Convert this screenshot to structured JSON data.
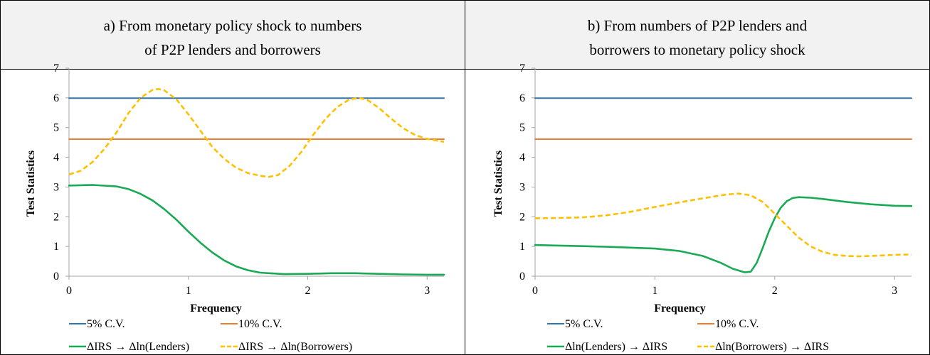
{
  "panels": [
    {
      "title_line1": "a) From monetary policy shock to numbers",
      "title_line2": "of P2P lenders and borrowers"
    },
    {
      "title_line1": "b) From numbers of P2P lenders and",
      "title_line2": "borrowers to monetary policy shock"
    }
  ],
  "colors": {
    "cv5": "#2e75b6",
    "cv10": "#ed7d31",
    "series_solid": "#1aaa55",
    "series_dashed": "#ffc000",
    "header_bg": "#f2f2f2",
    "border": "#000000",
    "axis": "#a6a6a6"
  },
  "chart_data": [
    {
      "type": "line",
      "title": "",
      "xlabel": "Frequency",
      "ylabel": "Test Statistics",
      "xlim": [
        0,
        3.1416
      ],
      "ylim": [
        0,
        7
      ],
      "xticks": [
        "0",
        "1",
        "2",
        "3"
      ],
      "yticks": [
        "0",
        "1",
        "2",
        "3",
        "4",
        "5",
        "6",
        "7"
      ],
      "grid": false,
      "legend_placement": "bottom",
      "series": [
        {
          "name": "5% C.V.",
          "style": "solid",
          "color": "#2e75b6",
          "x": [
            0,
            3.1416
          ],
          "y": [
            5.99,
            5.99
          ]
        },
        {
          "name": "10% C.V.",
          "style": "solid",
          "color": "#ed7d31",
          "x": [
            0,
            3.1416
          ],
          "y": [
            4.61,
            4.61
          ]
        },
        {
          "name": "ΔIRS → Δln(Lenders)",
          "style": "solid",
          "color": "#1aaa55",
          "x": [
            0,
            0.2,
            0.4,
            0.5,
            0.6,
            0.7,
            0.8,
            0.9,
            1.0,
            1.1,
            1.2,
            1.3,
            1.4,
            1.5,
            1.6,
            1.8,
            2.0,
            2.2,
            2.4,
            2.6,
            2.8,
            3.0,
            3.1416
          ],
          "y": [
            3.05,
            3.07,
            3.02,
            2.93,
            2.77,
            2.55,
            2.25,
            1.9,
            1.5,
            1.13,
            0.8,
            0.53,
            0.33,
            0.2,
            0.12,
            0.07,
            0.08,
            0.1,
            0.1,
            0.08,
            0.06,
            0.05,
            0.05
          ]
        },
        {
          "name": "ΔIRS → Δln(Borrowers)",
          "style": "dashed",
          "color": "#ffc000",
          "x": [
            0,
            0.1,
            0.2,
            0.3,
            0.4,
            0.5,
            0.6,
            0.7,
            0.75,
            0.8,
            0.9,
            1.0,
            1.1,
            1.2,
            1.3,
            1.4,
            1.5,
            1.6,
            1.67,
            1.75,
            1.85,
            1.95,
            2.05,
            2.15,
            2.25,
            2.35,
            2.43,
            2.5,
            2.6,
            2.7,
            2.8,
            2.9,
            3.0,
            3.1,
            3.1416
          ],
          "y": [
            3.42,
            3.55,
            3.85,
            4.3,
            4.85,
            5.5,
            6.0,
            6.27,
            6.3,
            6.25,
            5.95,
            5.45,
            4.9,
            4.35,
            3.95,
            3.65,
            3.47,
            3.38,
            3.34,
            3.4,
            3.72,
            4.2,
            4.78,
            5.3,
            5.7,
            5.95,
            6.0,
            5.93,
            5.65,
            5.3,
            4.98,
            4.75,
            4.62,
            4.55,
            4.52
          ]
        }
      ]
    },
    {
      "type": "line",
      "title": "",
      "xlabel": "Frequency",
      "ylabel": "Test Statistics",
      "xlim": [
        0,
        3.1416
      ],
      "ylim": [
        0,
        7
      ],
      "xticks": [
        "0",
        "1",
        "2",
        "3"
      ],
      "yticks": [
        "0",
        "1",
        "2",
        "3",
        "4",
        "5",
        "6",
        "7"
      ],
      "grid": false,
      "legend_placement": "bottom",
      "series": [
        {
          "name": "5% C.V.",
          "style": "solid",
          "color": "#2e75b6",
          "x": [
            0,
            3.1416
          ],
          "y": [
            5.99,
            5.99
          ]
        },
        {
          "name": "10% C.V.",
          "style": "solid",
          "color": "#ed7d31",
          "x": [
            0,
            3.1416
          ],
          "y": [
            4.61,
            4.61
          ]
        },
        {
          "name": "Δln(Lenders) → ΔIRS",
          "style": "solid",
          "color": "#1aaa55",
          "x": [
            0,
            0.2,
            0.4,
            0.6,
            0.8,
            1.0,
            1.2,
            1.4,
            1.55,
            1.65,
            1.75,
            1.8,
            1.85,
            1.9,
            1.95,
            2.0,
            2.05,
            2.1,
            2.15,
            2.2,
            2.3,
            2.4,
            2.6,
            2.8,
            3.0,
            3.1416
          ],
          "y": [
            1.05,
            1.03,
            1.01,
            0.99,
            0.96,
            0.93,
            0.85,
            0.68,
            0.45,
            0.25,
            0.13,
            0.15,
            0.45,
            0.95,
            1.5,
            1.95,
            2.3,
            2.52,
            2.63,
            2.66,
            2.64,
            2.6,
            2.5,
            2.42,
            2.37,
            2.36
          ]
        },
        {
          "name": "Δln(Borrowers) → ΔIRS",
          "style": "dashed",
          "color": "#ffc000",
          "x": [
            0,
            0.2,
            0.4,
            0.6,
            0.8,
            1.0,
            1.2,
            1.4,
            1.6,
            1.7,
            1.8,
            1.9,
            2.0,
            2.1,
            2.2,
            2.3,
            2.4,
            2.5,
            2.6,
            2.7,
            2.8,
            2.9,
            3.0,
            3.1416
          ],
          "y": [
            1.95,
            1.96,
            1.98,
            2.05,
            2.17,
            2.33,
            2.48,
            2.62,
            2.75,
            2.78,
            2.72,
            2.5,
            2.1,
            1.7,
            1.3,
            1.0,
            0.82,
            0.72,
            0.68,
            0.67,
            0.68,
            0.7,
            0.72,
            0.73
          ]
        }
      ]
    }
  ]
}
